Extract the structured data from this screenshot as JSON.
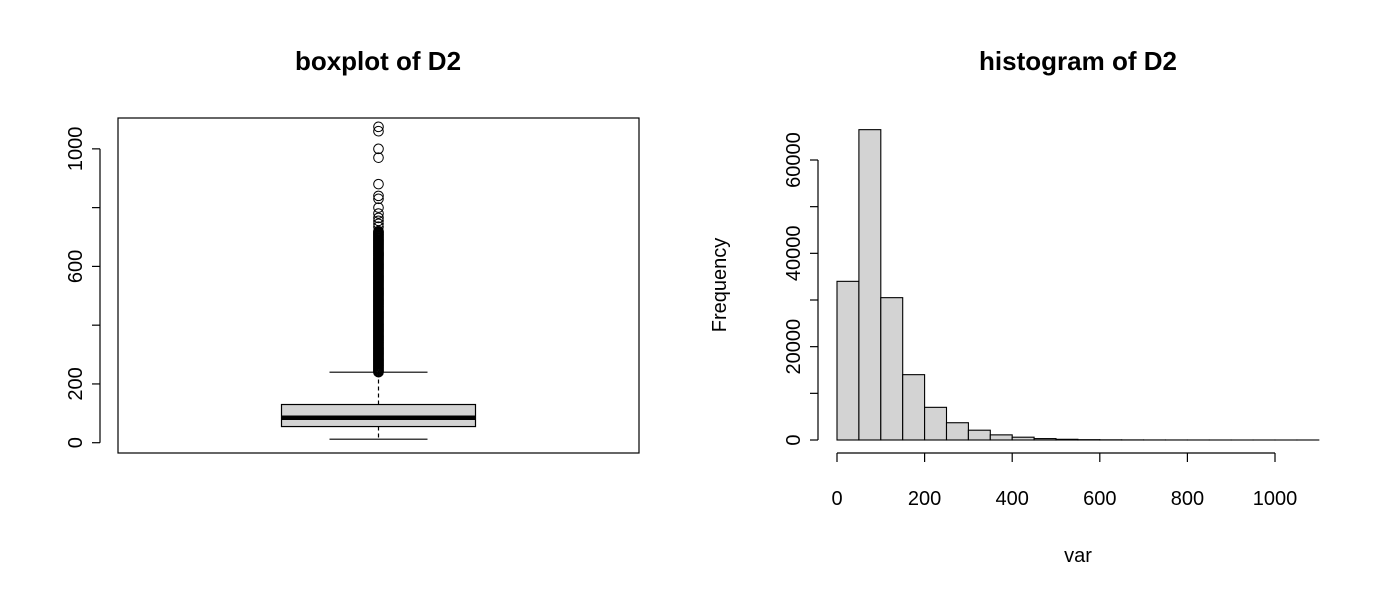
{
  "chart_data": [
    {
      "type": "boxplot",
      "title": "boxplot of D2",
      "xlabel": "",
      "ylabel": "",
      "ylim": [
        -35,
        1105
      ],
      "yticks": [
        0,
        200,
        600,
        1000
      ],
      "yticks_minor": [
        400,
        800
      ],
      "box": {
        "min": 12,
        "q1": 55,
        "median": 85,
        "q3": 130,
        "whisker_high": 240,
        "outlier_dense_range": [
          240,
          720
        ],
        "outliers": [
          735,
          745,
          755,
          765,
          780,
          800,
          830,
          840,
          880,
          970,
          1000,
          1060,
          1075
        ],
        "fill": "#d3d3d3"
      }
    },
    {
      "type": "histogram",
      "title": "histogram of D2",
      "xlabel": "var",
      "ylabel": "Frequency",
      "xlim": [
        -25,
        1100
      ],
      "xticks": [
        0,
        200,
        400,
        600,
        800,
        1000
      ],
      "yticks": [
        0,
        20000,
        40000,
        60000
      ],
      "yticks_minor": [
        10000,
        30000,
        50000
      ],
      "bin_width": 50,
      "bins": [
        {
          "start": 0,
          "end": 50,
          "count": 34000
        },
        {
          "start": 50,
          "end": 100,
          "count": 66500
        },
        {
          "start": 100,
          "end": 150,
          "count": 30500
        },
        {
          "start": 150,
          "end": 200,
          "count": 14000
        },
        {
          "start": 200,
          "end": 250,
          "count": 7000
        },
        {
          "start": 250,
          "end": 300,
          "count": 3700
        },
        {
          "start": 300,
          "end": 350,
          "count": 2100
        },
        {
          "start": 350,
          "end": 400,
          "count": 1100
        },
        {
          "start": 400,
          "end": 450,
          "count": 600
        },
        {
          "start": 450,
          "end": 500,
          "count": 300
        },
        {
          "start": 500,
          "end": 550,
          "count": 150
        },
        {
          "start": 550,
          "end": 600,
          "count": 70
        },
        {
          "start": 600,
          "end": 650,
          "count": 35
        },
        {
          "start": 650,
          "end": 700,
          "count": 20
        },
        {
          "start": 700,
          "end": 750,
          "count": 12
        },
        {
          "start": 750,
          "end": 800,
          "count": 8
        },
        {
          "start": 800,
          "end": 850,
          "count": 5
        },
        {
          "start": 850,
          "end": 900,
          "count": 2
        },
        {
          "start": 900,
          "end": 950,
          "count": 1
        },
        {
          "start": 950,
          "end": 1000,
          "count": 2
        },
        {
          "start": 1000,
          "end": 1050,
          "count": 1
        },
        {
          "start": 1050,
          "end": 1100,
          "count": 2
        }
      ],
      "fill": "#d3d3d3"
    }
  ]
}
